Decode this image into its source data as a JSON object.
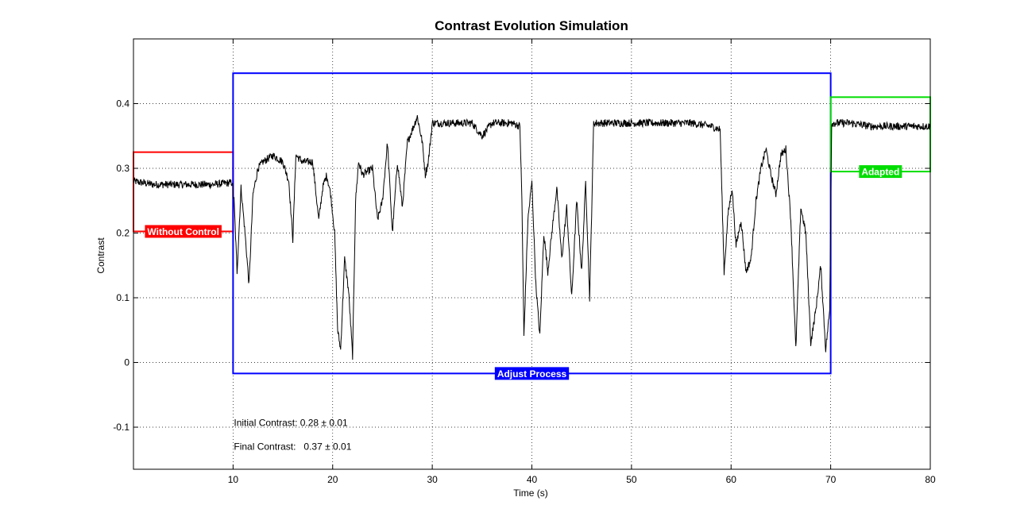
{
  "chart_data": {
    "type": "line",
    "title": "Contrast Evolution Simulation",
    "xlabel": "Time (s)",
    "ylabel": "Contrast",
    "xlim": [
      0,
      80
    ],
    "ylim": [
      -0.165,
      0.5
    ],
    "grid": true,
    "x_ticks": [
      10,
      20,
      30,
      40,
      50,
      60,
      70,
      80
    ],
    "y_ticks": [
      -0.1,
      0,
      0.1,
      0.2,
      0.3,
      0.4
    ],
    "x_tick_labels": [
      "10",
      "20",
      "30",
      "40",
      "50",
      "60",
      "70",
      "80"
    ],
    "y_tick_labels": [
      "-0.1",
      "0",
      "0.1",
      "0.2",
      "0.3",
      "0.4"
    ],
    "series": [
      {
        "color": "#000000",
        "noise": 0.006,
        "x": [
          0,
          2,
          4,
          6,
          8,
          9.9,
          10.1,
          10.4,
          10.8,
          11.2,
          11.6,
          12.0,
          12.5,
          13.0,
          14.0,
          15.0,
          15.6,
          16.0,
          16.3,
          17.0,
          18.0,
          18.6,
          19.0,
          19.4,
          19.8,
          20.2,
          20.5,
          20.8,
          21.2,
          21.6,
          22.0,
          22.3,
          22.6,
          23.0,
          24.0,
          24.5,
          25.0,
          25.5,
          26.0,
          26.5,
          27.0,
          27.5,
          28.0,
          28.5,
          29.0,
          29.3,
          29.6,
          30.0,
          32.0,
          34.0,
          35.0,
          36.0,
          38.0,
          38.8,
          39.0,
          39.2,
          39.6,
          40.0,
          40.4,
          40.8,
          41.2,
          41.6,
          42.0,
          42.5,
          43.0,
          43.5,
          44.0,
          44.5,
          45.0,
          45.4,
          45.8,
          46.0,
          46.2,
          48.0,
          50.0,
          52.0,
          54.0,
          56.0,
          58.0,
          58.9,
          59.1,
          59.3,
          59.7,
          60.1,
          60.5,
          61.0,
          61.5,
          62.0,
          62.5,
          63.0,
          63.5,
          64.0,
          64.5,
          65.0,
          65.5,
          66.0,
          66.5,
          67.0,
          67.5,
          68.0,
          68.5,
          69.0,
          69.5,
          69.9,
          70.1,
          72.0,
          74.0,
          76.0,
          78.0,
          80.0
        ],
        "y": [
          0.28,
          0.275,
          0.275,
          0.275,
          0.275,
          0.278,
          0.25,
          0.14,
          0.27,
          0.2,
          0.12,
          0.26,
          0.3,
          0.31,
          0.32,
          0.31,
          0.28,
          0.19,
          0.32,
          0.31,
          0.31,
          0.22,
          0.27,
          0.29,
          0.26,
          0.2,
          0.05,
          0.02,
          0.16,
          0.11,
          0.01,
          0.25,
          0.31,
          0.29,
          0.3,
          0.22,
          0.25,
          0.34,
          0.2,
          0.31,
          0.24,
          0.34,
          0.36,
          0.38,
          0.34,
          0.29,
          0.31,
          0.37,
          0.37,
          0.37,
          0.35,
          0.37,
          0.37,
          0.365,
          0.25,
          0.04,
          0.22,
          0.28,
          0.12,
          0.04,
          0.2,
          0.14,
          0.2,
          0.27,
          0.16,
          0.24,
          0.1,
          0.25,
          0.14,
          0.28,
          0.1,
          0.23,
          0.37,
          0.37,
          0.37,
          0.37,
          0.37,
          0.37,
          0.365,
          0.36,
          0.25,
          0.14,
          0.23,
          0.27,
          0.18,
          0.22,
          0.14,
          0.16,
          0.25,
          0.3,
          0.33,
          0.29,
          0.26,
          0.32,
          0.33,
          0.22,
          0.02,
          0.24,
          0.2,
          0.03,
          0.08,
          0.15,
          0.02,
          0.08,
          0.37,
          0.37,
          0.365,
          0.365,
          0.365,
          0.365
        ]
      }
    ],
    "regions": [
      {
        "label": "Without Control",
        "x0": 0,
        "x1": 10,
        "y0": 0.2025,
        "y1": 0.325,
        "color": "#ff0000"
      },
      {
        "label": "Adjust Process",
        "x0": 10,
        "x1": 70,
        "y0": -0.017,
        "y1": 0.447,
        "color": "#0000ff"
      },
      {
        "label": "Adapted",
        "x0": 70,
        "x1": 80,
        "y0": 0.295,
        "y1": 0.41,
        "color": "#00dd00"
      }
    ],
    "annotations": [
      {
        "text": "Initial Contrast: 0.28 ± 0.01",
        "x": 10,
        "y": -0.093
      },
      {
        "text": "Final Contrast:   0.37 ± 0.01",
        "x": 10,
        "y": -0.13
      }
    ]
  }
}
